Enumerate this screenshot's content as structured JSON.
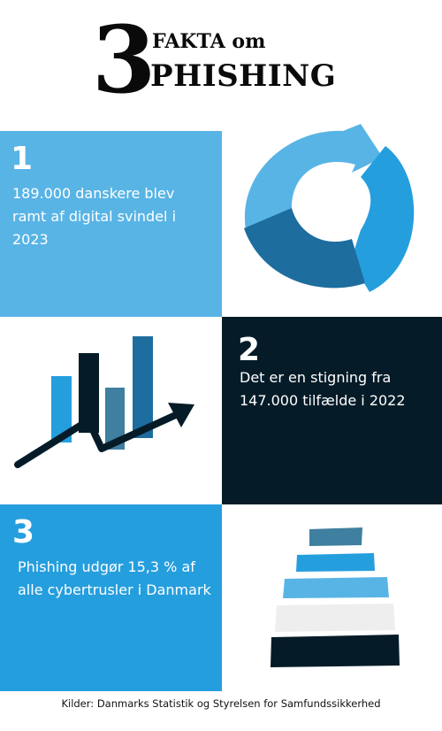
{
  "header": {
    "number": "3",
    "line1": "FAKTA om",
    "line2": "PHISHING"
  },
  "facts": [
    {
      "number": "1",
      "text": "189.000 danskere blev ramt af digital svindel i 2023"
    },
    {
      "number": "2",
      "text": "Det er en stigning fra 147.000 tilfælde i 2022"
    },
    {
      "number": "3",
      "text": "Phishing udgør 15,3 % af alle cybertrusler i Danmark"
    }
  ],
  "icons": [
    "cycle-arrows-icon",
    "bar-chart-growth-icon",
    "stacked-bars-icon"
  ],
  "colors": {
    "light_blue": "#58b4e5",
    "mid_blue": "#259ede",
    "dark_blue": "#1d6d9e",
    "slate_blue": "#3f7f9f",
    "navy": "#051c28"
  },
  "source": "Kilder: Danmarks Statistik og Styrelsen for Samfundssikkerhed"
}
